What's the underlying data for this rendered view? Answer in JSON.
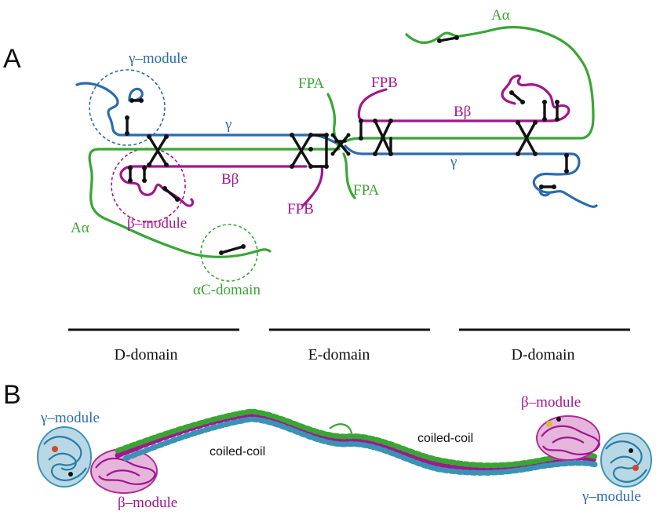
{
  "colors": {
    "alpha_chain": "#3aa535",
    "beta_chain": "#a2168f",
    "gamma_chain": "#2b6cae",
    "disulfide": "#111111"
  },
  "panel_a": {
    "letter": "A",
    "gamma_module": "γ–module",
    "beta_module": "β–module",
    "ac_domain": "αC-domain",
    "fpa_top": "FPA",
    "fpa_bottom": "FPA",
    "fpb_top": "FPB",
    "fpb_bottom": "FPB",
    "gamma_left": "γ",
    "gamma_right": "γ",
    "bbeta_left": "Bβ",
    "bbeta_right": "Bβ",
    "aalpha_left": "Aα",
    "aalpha_right": "Aα",
    "domains": [
      "D-domain",
      "E-domain",
      "D-domain"
    ]
  },
  "panel_b": {
    "letter": "B",
    "gamma_module_left": "γ–module",
    "beta_module_left": "β–module",
    "beta_module_right": "β–module",
    "gamma_module_right": "γ–module",
    "coiled_coil_left": "coiled-coil",
    "coiled_coil_right": "coiled-coil"
  }
}
